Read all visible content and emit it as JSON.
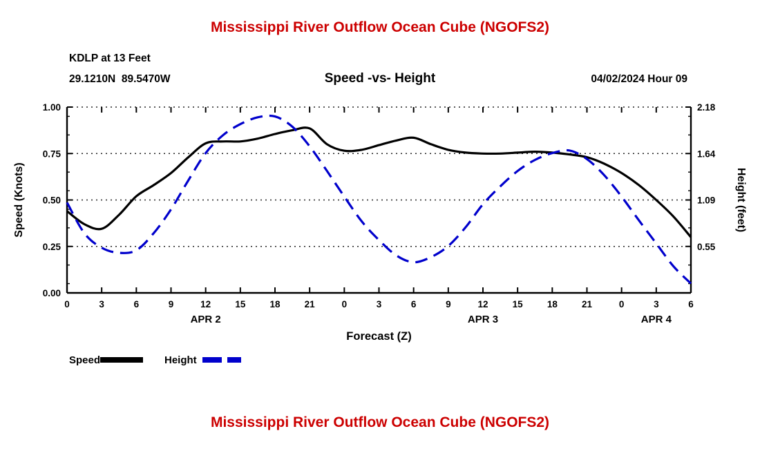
{
  "page": {
    "header_title": "Mississippi River Outflow Ocean Cube (NGOFS2)",
    "footer_title": "Mississippi River Outflow Ocean Cube (NGOFS2)",
    "title_color": "#cc0000"
  },
  "meta": {
    "station_line1": "KDLP at 13 Feet",
    "station_line2": "29.1210N  89.5470W",
    "datetime": "04/02/2024 Hour 09"
  },
  "chart_data": {
    "type": "line",
    "title": "Speed -vs- Height",
    "xlabel": "Forecast (Z)",
    "x_range": [
      0,
      54
    ],
    "x_ticks": [
      {
        "hour": 0,
        "label": "0"
      },
      {
        "hour": 3,
        "label": "3"
      },
      {
        "hour": 6,
        "label": "6"
      },
      {
        "hour": 9,
        "label": "9"
      },
      {
        "hour": 12,
        "label": "12"
      },
      {
        "hour": 15,
        "label": "15"
      },
      {
        "hour": 18,
        "label": "18"
      },
      {
        "hour": 21,
        "label": "21"
      },
      {
        "hour": 24,
        "label": "0"
      },
      {
        "hour": 27,
        "label": "3"
      },
      {
        "hour": 30,
        "label": "6"
      },
      {
        "hour": 33,
        "label": "9"
      },
      {
        "hour": 36,
        "label": "12"
      },
      {
        "hour": 39,
        "label": "15"
      },
      {
        "hour": 42,
        "label": "18"
      },
      {
        "hour": 45,
        "label": "21"
      },
      {
        "hour": 48,
        "label": "0"
      },
      {
        "hour": 51,
        "label": "3"
      },
      {
        "hour": 54,
        "label": "6"
      }
    ],
    "day_labels": [
      {
        "label": "APR 2",
        "hour": 12
      },
      {
        "label": "APR 3",
        "hour": 36
      },
      {
        "label": "APR 4",
        "hour": 51
      }
    ],
    "left_axis": {
      "label": "Speed (Knots)",
      "range": [
        0,
        1.0
      ],
      "ticks": [
        {
          "value": 0.0,
          "label": "0.00"
        },
        {
          "value": 0.25,
          "label": "0.25"
        },
        {
          "value": 0.5,
          "label": "0.50"
        },
        {
          "value": 0.75,
          "label": "0.75"
        },
        {
          "value": 1.0,
          "label": "1.00"
        }
      ],
      "minor_step": 0.05
    },
    "right_axis": {
      "label": "Height (feet)",
      "range": [
        0,
        2.18
      ],
      "ticks": [
        {
          "value": 0.545,
          "label": "0.55"
        },
        {
          "value": 1.09,
          "label": "1.09"
        },
        {
          "value": 1.635,
          "label": "1.64"
        },
        {
          "value": 2.18,
          "label": "2.18"
        }
      ]
    },
    "legend": [
      {
        "name": "Speed",
        "color": "#000000",
        "dash": null
      },
      {
        "name": "Height",
        "color": "#0000cc",
        "dash": "28 8"
      }
    ],
    "series": [
      {
        "name": "Speed",
        "axis": "left",
        "color": "#000000",
        "dash": null,
        "x": [
          0,
          1.5,
          3,
          4.5,
          6,
          7.5,
          9,
          10.5,
          12,
          13.5,
          15,
          16.5,
          18,
          19.5,
          21,
          22.5,
          24,
          25.5,
          27,
          28.5,
          30,
          31.5,
          33,
          34.5,
          36,
          37.5,
          39,
          40.5,
          42,
          43.5,
          45,
          46.5,
          48,
          49.5,
          51,
          52.5,
          54
        ],
        "y": [
          0.44,
          0.37,
          0.345,
          0.42,
          0.52,
          0.58,
          0.645,
          0.73,
          0.805,
          0.815,
          0.815,
          0.83,
          0.855,
          0.875,
          0.885,
          0.8,
          0.765,
          0.77,
          0.795,
          0.82,
          0.835,
          0.8,
          0.77,
          0.755,
          0.75,
          0.75,
          0.755,
          0.76,
          0.755,
          0.745,
          0.73,
          0.695,
          0.645,
          0.58,
          0.5,
          0.41,
          0.3
        ]
      },
      {
        "name": "Height",
        "axis": "right",
        "color": "#0000cc",
        "dash": "18 10",
        "x": [
          0,
          1.5,
          3,
          4.5,
          6,
          7.5,
          9,
          10.5,
          12,
          13.5,
          15,
          16.5,
          18,
          19.5,
          21,
          22.5,
          24,
          25.5,
          27,
          28.5,
          30,
          31.5,
          33,
          34.5,
          36,
          37.5,
          39,
          40.5,
          42,
          43.5,
          45,
          46.5,
          48,
          49.5,
          51,
          52.5,
          54
        ],
        "y": [
          1.06,
          0.7,
          0.53,
          0.47,
          0.5,
          0.7,
          0.98,
          1.32,
          1.64,
          1.85,
          1.98,
          2.06,
          2.07,
          1.95,
          1.72,
          1.43,
          1.13,
          0.84,
          0.62,
          0.44,
          0.36,
          0.42,
          0.55,
          0.77,
          1.04,
          1.25,
          1.43,
          1.56,
          1.64,
          1.67,
          1.57,
          1.38,
          1.13,
          0.85,
          0.58,
          0.31,
          0.11
        ]
      }
    ]
  }
}
